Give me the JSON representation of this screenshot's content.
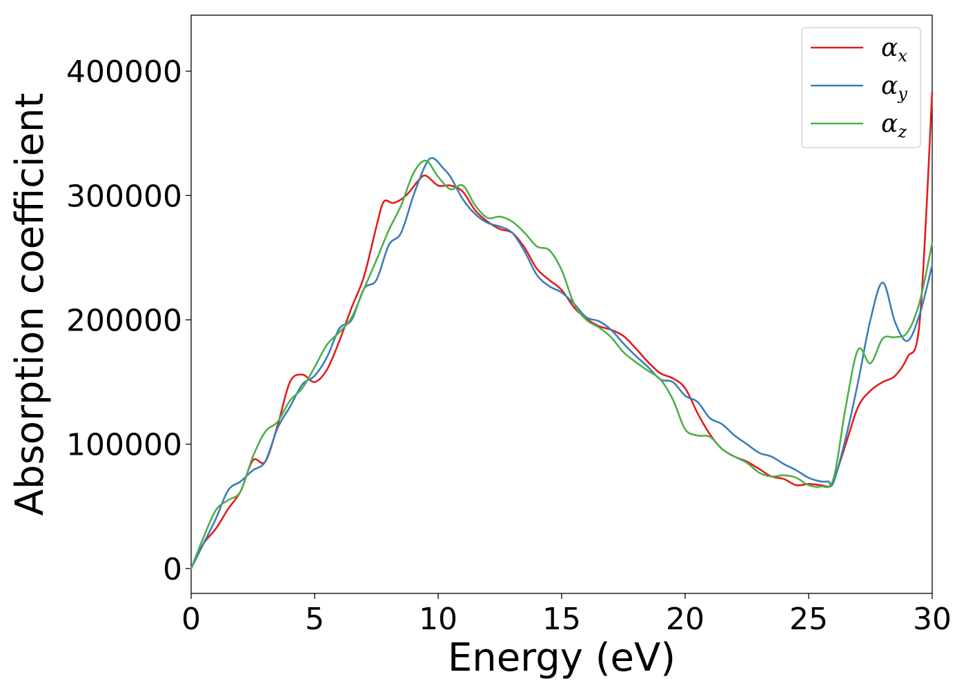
{
  "chart_data": {
    "type": "line",
    "xlabel": "Energy (eV)",
    "ylabel": "Absorption coefficient",
    "xlim": [
      0,
      30
    ],
    "ylim": [
      -20000,
      445000
    ],
    "xticks": [
      0,
      5,
      10,
      15,
      20,
      25,
      30
    ],
    "yticks": [
      0,
      100000,
      200000,
      300000,
      400000
    ],
    "grid": false,
    "legend_position": "top-right",
    "series": [
      {
        "name": "α",
        "subscript": "x",
        "color": "#e41a1c",
        "x": [
          0,
          0.5,
          1,
          1.5,
          2,
          2.5,
          3,
          3.5,
          4,
          4.5,
          5,
          5.5,
          6,
          6.5,
          7,
          7.5,
          7.8,
          8.2,
          8.7,
          9.2,
          9.5,
          10,
          10.5,
          11,
          11.5,
          12,
          12.5,
          13,
          13.5,
          14,
          14.5,
          15,
          15.5,
          16,
          16.5,
          17,
          17.5,
          18,
          18.5,
          19,
          19.5,
          20,
          20.5,
          21,
          21.5,
          22,
          22.5,
          23,
          23.5,
          24,
          24.5,
          25,
          25.5,
          25.8,
          26,
          26.5,
          27,
          27.5,
          28,
          28.5,
          29,
          29.5,
          30
        ],
        "y": [
          0,
          20000,
          32000,
          48000,
          62000,
          87000,
          86000,
          115000,
          150000,
          156000,
          150000,
          160000,
          183000,
          210000,
          235000,
          275000,
          295000,
          294000,
          300000,
          312000,
          316000,
          308000,
          308000,
          303000,
          288000,
          279000,
          273000,
          270000,
          258000,
          241000,
          232000,
          224000,
          210000,
          201000,
          195000,
          192000,
          187000,
          177000,
          166000,
          157000,
          153000,
          145000,
          125000,
          108000,
          96000,
          90000,
          86000,
          80000,
          74000,
          72000,
          67000,
          68000,
          67000,
          66000,
          70000,
          100000,
          130000,
          143000,
          150000,
          155000,
          170000,
          200000,
          383000
        ]
      },
      {
        "name": "α",
        "subscript": "y",
        "color": "#377eb8",
        "x": [
          0,
          0.5,
          1,
          1.5,
          2,
          2.5,
          3,
          3.5,
          4,
          4.5,
          5,
          5.5,
          6,
          6.5,
          7,
          7.5,
          8,
          8.5,
          9,
          9.5,
          9.8,
          10.2,
          10.5,
          11,
          11.5,
          12,
          12.5,
          13,
          13.5,
          14,
          14.5,
          15,
          15.5,
          16,
          16.5,
          17,
          17.5,
          18,
          18.5,
          19,
          19.5,
          20,
          20.5,
          21,
          21.5,
          22,
          22.5,
          23,
          23.5,
          24,
          24.5,
          25,
          25.5,
          25.8,
          26,
          26.5,
          27,
          27.5,
          28,
          28.5,
          29,
          29.5,
          30
        ],
        "y": [
          0,
          20000,
          40000,
          63000,
          70000,
          79000,
          86000,
          113000,
          130000,
          148000,
          155000,
          170000,
          193000,
          200000,
          225000,
          232000,
          260000,
          270000,
          300000,
          325000,
          330000,
          322000,
          315000,
          297000,
          285000,
          278000,
          275000,
          270000,
          255000,
          236000,
          227000,
          222000,
          213000,
          202000,
          199000,
          192000,
          181000,
          171000,
          162000,
          152000,
          150000,
          139000,
          134000,
          121000,
          116000,
          107000,
          100000,
          93000,
          90000,
          84000,
          79000,
          73000,
          70000,
          70000,
          69000,
          105000,
          150000,
          200000,
          230000,
          198000,
          183000,
          205000,
          244000
        ]
      },
      {
        "name": "α",
        "subscript": "z",
        "color": "#4daf4a",
        "x": [
          0,
          0.5,
          1,
          1.5,
          2,
          2.5,
          3,
          3.5,
          4,
          4.5,
          5,
          5.5,
          6,
          6.5,
          7,
          7.5,
          8,
          8.5,
          9,
          9.5,
          10,
          10.5,
          11,
          11.5,
          12,
          12.5,
          13,
          13.5,
          14,
          14.5,
          15,
          15.5,
          16,
          16.5,
          17,
          17.5,
          18,
          18.5,
          19,
          19.5,
          20,
          20.5,
          21,
          21.5,
          22,
          22.5,
          23,
          23.5,
          24,
          24.5,
          25,
          25.5,
          26,
          26.5,
          27,
          27.5,
          28,
          28.5,
          29,
          29.5,
          30
        ],
        "y": [
          0,
          25000,
          47000,
          55000,
          62000,
          90000,
          110000,
          118000,
          135000,
          145000,
          162000,
          180000,
          190000,
          202000,
          225000,
          248000,
          272000,
          292000,
          318000,
          328000,
          315000,
          305000,
          308000,
          292000,
          282000,
          283000,
          279000,
          270000,
          259000,
          256000,
          240000,
          213000,
          200000,
          194000,
          186000,
          174000,
          166000,
          159000,
          152000,
          136000,
          112000,
          107000,
          106000,
          96000,
          90000,
          85000,
          77000,
          74000,
          75000,
          73000,
          67000,
          66000,
          72000,
          130000,
          176000,
          165000,
          185000,
          186000,
          190000,
          215000,
          262000
        ]
      }
    ]
  }
}
